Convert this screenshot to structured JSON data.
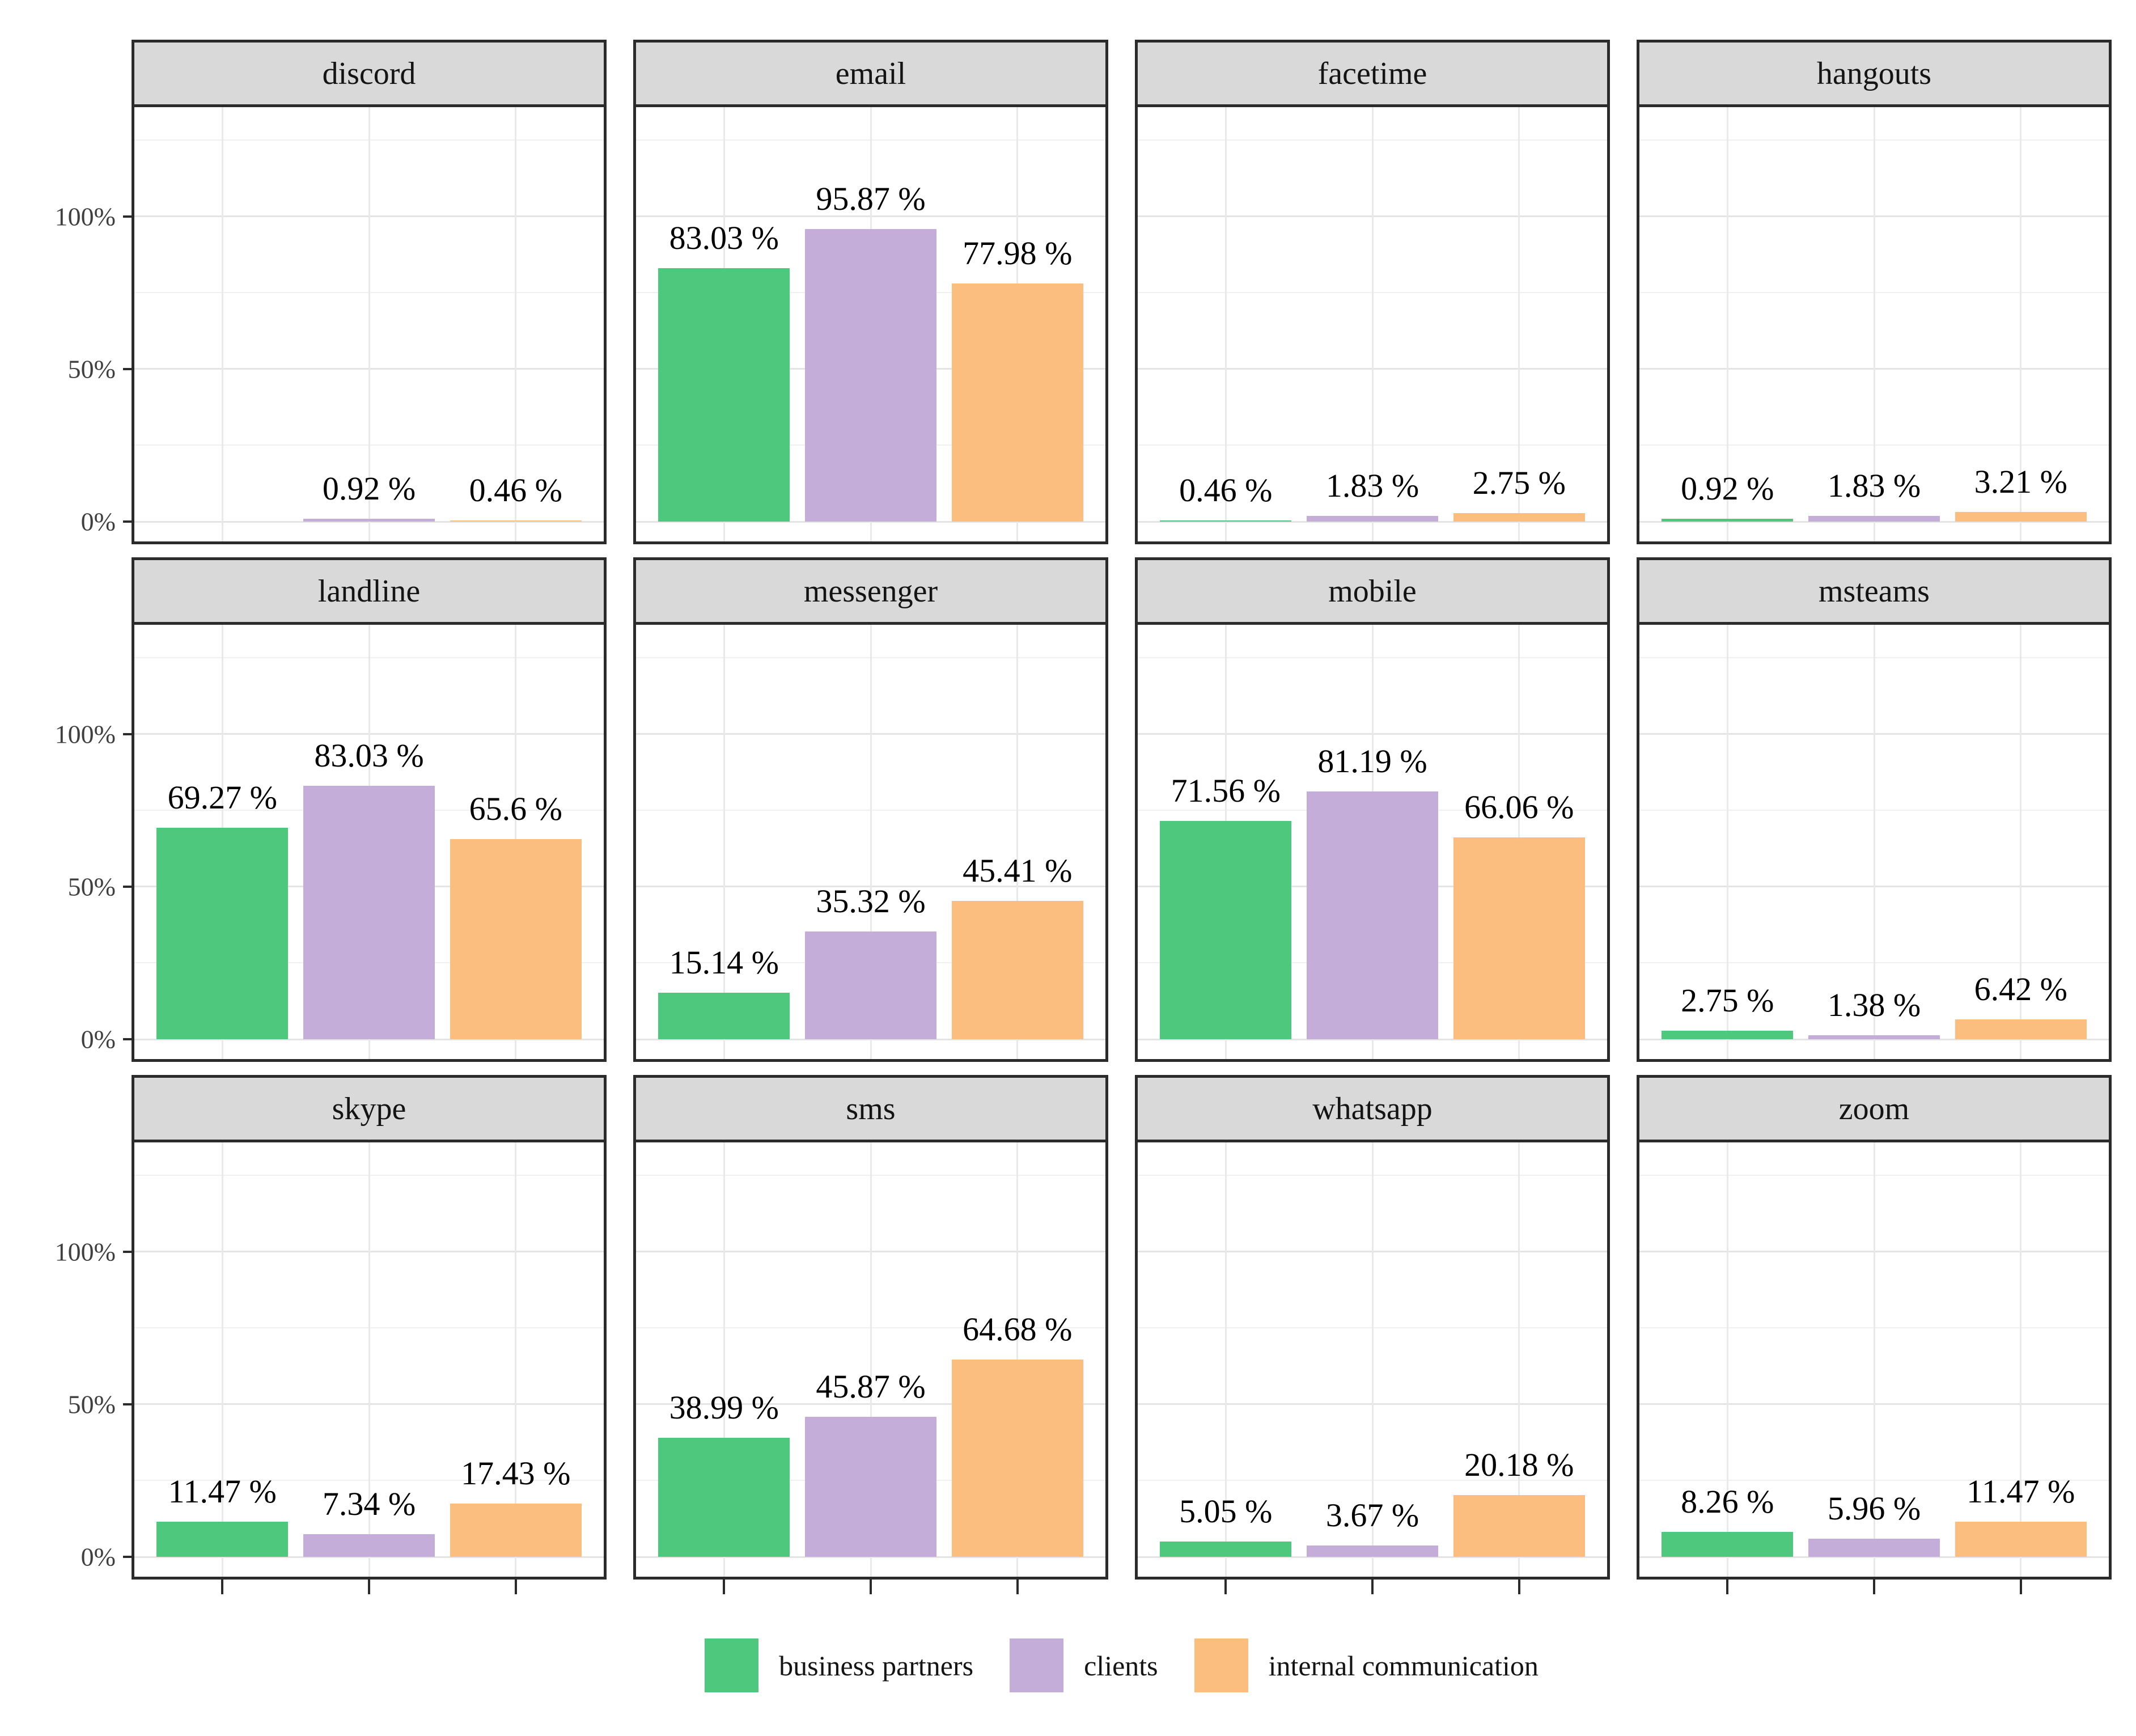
{
  "chart_data": {
    "type": "bar",
    "faceted": true,
    "title": "",
    "xlabel": "",
    "ylabel": "",
    "y_axis": {
      "tick_labels": [
        "100%",
        "50%",
        "0%"
      ],
      "tick_values": [
        100,
        50,
        0
      ],
      "domain": [
        -6.5,
        136.5
      ],
      "major_gridlines": [
        0,
        50,
        100
      ],
      "minor_gridlines": [
        25,
        75,
        125
      ],
      "grid": true
    },
    "x_axis": {
      "category_positions_pct": [
        18.75,
        50,
        81.25
      ],
      "tick_labels": []
    },
    "series": [
      {
        "name": "business partners",
        "color": "#4dc87c"
      },
      {
        "name": "clients",
        "color": "#c4add8"
      },
      {
        "name": "internal communication",
        "color": "#fcbe7e"
      }
    ],
    "facets": [
      {
        "title": "discord",
        "values": [
          null,
          0.92,
          0.46
        ],
        "labels": [
          null,
          "0.92 %",
          "0.46 %"
        ]
      },
      {
        "title": "email",
        "values": [
          83.03,
          95.87,
          77.98
        ],
        "labels": [
          "83.03 %",
          "95.87 %",
          "77.98 %"
        ]
      },
      {
        "title": "facetime",
        "values": [
          0.46,
          1.83,
          2.75
        ],
        "labels": [
          "0.46 %",
          "1.83 %",
          "2.75 %"
        ]
      },
      {
        "title": "hangouts",
        "values": [
          0.92,
          1.83,
          3.21
        ],
        "labels": [
          "0.92 %",
          "1.83 %",
          "3.21 %"
        ]
      },
      {
        "title": "landline",
        "values": [
          69.27,
          83.03,
          65.6
        ],
        "labels": [
          "69.27 %",
          "83.03 %",
          "65.6 %"
        ]
      },
      {
        "title": "messenger",
        "values": [
          15.14,
          35.32,
          45.41
        ],
        "labels": [
          "15.14 %",
          "35.32 %",
          "45.41 %"
        ]
      },
      {
        "title": "mobile",
        "values": [
          71.56,
          81.19,
          66.06
        ],
        "labels": [
          "71.56 %",
          "81.19 %",
          "66.06 %"
        ]
      },
      {
        "title": "msteams",
        "values": [
          2.75,
          1.38,
          6.42
        ],
        "labels": [
          "2.75 %",
          "1.38 %",
          "6.42 %"
        ]
      },
      {
        "title": "skype",
        "values": [
          11.47,
          7.34,
          17.43
        ],
        "labels": [
          "11.47 %",
          "7.34 %",
          "17.43 %"
        ]
      },
      {
        "title": "sms",
        "values": [
          38.99,
          45.87,
          64.68
        ],
        "labels": [
          "38.99 %",
          "45.87 %",
          "64.68 %"
        ]
      },
      {
        "title": "whatsapp",
        "values": [
          5.05,
          3.67,
          20.18
        ],
        "labels": [
          "5.05 %",
          "3.67 %",
          "20.18 %"
        ]
      },
      {
        "title": "zoom",
        "values": [
          8.26,
          5.96,
          11.47
        ],
        "labels": [
          "8.26 %",
          "5.96 %",
          "11.47 %"
        ]
      }
    ],
    "legend": {
      "position": "bottom",
      "items": [
        "business partners",
        "clients",
        "internal communication"
      ]
    },
    "style": {
      "panel_border_color": "#2b2b2b",
      "strip_background": "#d9d9d9",
      "major_grid_color": "#e4e4e4",
      "minor_grid_color": "#f0f0f0",
      "axis_text_color": "#404040",
      "value_label_color": "#000000"
    }
  }
}
